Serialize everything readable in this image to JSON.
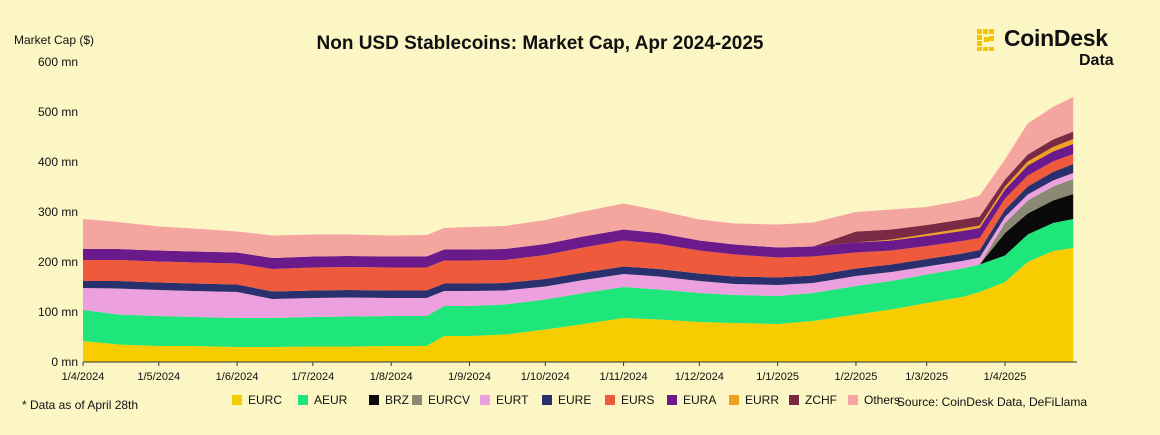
{
  "title": "Non USD Stablecoins: Market Cap, Apr 2024-2025",
  "brand": {
    "name": "CoinDesk",
    "sub": "Data",
    "mark_color": "#f5c400"
  },
  "footnote": "* Data as of April 28th",
  "source": "Source: CoinDesk Data, DeFiLlama",
  "chart_data": {
    "type": "area",
    "stacked": true,
    "ylabel": "Market Cap ($)",
    "ylim": [
      0,
      600
    ],
    "y_ticks": [
      0,
      100,
      200,
      300,
      400,
      500,
      600
    ],
    "y_tick_labels": [
      "0 mn",
      "100 mn",
      "200 mn",
      "300 mn",
      "400 mn",
      "500 mn",
      "600 mn"
    ],
    "x_ticks": [
      "2024-04-01",
      "2024-05-01",
      "2024-06-01",
      "2024-07-01",
      "2024-08-01",
      "2024-09-01",
      "2024-10-01",
      "2024-11-01",
      "2024-12-01",
      "2025-01-01",
      "2025-02-01",
      "2025-03-01",
      "2025-04-01"
    ],
    "x_tick_labels": [
      "1/4/2024",
      "1/5/2024",
      "1/6/2024",
      "1/7/2024",
      "1/8/2024",
      "1/9/2024",
      "1/10/2024",
      "1/11/2024",
      "1/12/2024",
      "1/1/2025",
      "1/2/2025",
      "1/3/2025",
      "1/4/2025"
    ],
    "x_range": [
      "2024-04-01",
      "2025-04-28"
    ],
    "x": [
      "2024-04-01",
      "2024-04-15",
      "2024-05-01",
      "2024-05-15",
      "2024-06-01",
      "2024-06-15",
      "2024-07-01",
      "2024-07-15",
      "2024-08-01",
      "2024-08-15",
      "2024-08-22",
      "2024-09-01",
      "2024-09-15",
      "2024-10-01",
      "2024-10-15",
      "2024-11-01",
      "2024-11-15",
      "2024-12-01",
      "2024-12-15",
      "2025-01-01",
      "2025-01-15",
      "2025-02-01",
      "2025-02-15",
      "2025-03-01",
      "2025-03-15",
      "2025-03-22",
      "2025-04-01",
      "2025-04-10",
      "2025-04-20",
      "2025-04-28"
    ],
    "series": [
      {
        "name": "EURC",
        "color": "#f7cc00",
        "values": [
          42,
          35,
          32,
          32,
          30,
          30,
          31,
          31,
          32,
          32,
          52,
          52,
          55,
          65,
          75,
          88,
          85,
          80,
          78,
          76,
          82,
          95,
          105,
          118,
          130,
          140,
          160,
          200,
          222,
          228
        ]
      },
      {
        "name": "AEUR",
        "color": "#1ee67a",
        "values": [
          62,
          60,
          60,
          58,
          58,
          58,
          59,
          60,
          60,
          60,
          60,
          60,
          60,
          60,
          62,
          62,
          60,
          58,
          56,
          56,
          56,
          57,
          57,
          57,
          57,
          55,
          53,
          55,
          56,
          58
        ]
      },
      {
        "name": "BRZ",
        "color": "#0a0a0a",
        "values": [
          0,
          0,
          0,
          0,
          0,
          0,
          0,
          0,
          0,
          0,
          0,
          0,
          0,
          0,
          0,
          0,
          0,
          0,
          0,
          0,
          0,
          0,
          0,
          0,
          0,
          0,
          45,
          42,
          45,
          50
        ]
      },
      {
        "name": "EURCV",
        "color": "#8a8a74",
        "values": [
          0,
          0,
          0,
          0,
          0,
          0,
          0,
          0,
          0,
          0,
          0,
          0,
          0,
          0,
          0,
          0,
          0,
          0,
          0,
          0,
          0,
          0,
          0,
          0,
          0,
          0,
          20,
          26,
          28,
          30
        ]
      },
      {
        "name": "EURT",
        "color": "#eca0e0",
        "values": [
          44,
          52,
          52,
          52,
          52,
          38,
          38,
          38,
          36,
          36,
          30,
          30,
          28,
          26,
          26,
          26,
          26,
          24,
          22,
          22,
          20,
          20,
          18,
          16,
          15,
          14,
          12,
          12,
          12,
          12
        ]
      },
      {
        "name": "EURE",
        "color": "#2a2f6e",
        "values": [
          14,
          15,
          15,
          15,
          15,
          15,
          15,
          15,
          15,
          15,
          15,
          15,
          15,
          15,
          15,
          15,
          15,
          15,
          15,
          15,
          15,
          15,
          15,
          15,
          15,
          15,
          15,
          16,
          17,
          18
        ]
      },
      {
        "name": "EURS",
        "color": "#f05a3c",
        "values": [
          42,
          42,
          42,
          42,
          42,
          45,
          46,
          46,
          46,
          46,
          46,
          46,
          46,
          48,
          50,
          52,
          50,
          46,
          44,
          40,
          38,
          32,
          28,
          26,
          25,
          24,
          22,
          22,
          21,
          20
        ]
      },
      {
        "name": "EURA",
        "color": "#6a1a8a",
        "values": [
          22,
          22,
          22,
          22,
          22,
          22,
          22,
          22,
          22,
          22,
          22,
          22,
          22,
          22,
          22,
          22,
          22,
          20,
          20,
          20,
          20,
          20,
          20,
          20,
          20,
          20,
          18,
          20,
          20,
          20
        ]
      },
      {
        "name": "EURR",
        "color": "#f0a020",
        "values": [
          0,
          0,
          0,
          0,
          0,
          0,
          0,
          0,
          0,
          0,
          0,
          0,
          0,
          0,
          0,
          0,
          0,
          0,
          0,
          0,
          0,
          0,
          2,
          4,
          5,
          5,
          6,
          8,
          9,
          10
        ]
      },
      {
        "name": "ZCHF",
        "color": "#7a2a44",
        "values": [
          0,
          0,
          0,
          0,
          0,
          0,
          0,
          0,
          0,
          0,
          0,
          0,
          0,
          0,
          0,
          0,
          0,
          0,
          0,
          0,
          0,
          22,
          20,
          18,
          18,
          18,
          14,
          14,
          15,
          15
        ]
      },
      {
        "name": "Others",
        "color": "#f5a5a0",
        "values": [
          60,
          54,
          48,
          46,
          42,
          45,
          44,
          43,
          42,
          43,
          43,
          45,
          46,
          48,
          50,
          52,
          45,
          42,
          42,
          46,
          48,
          39,
          40,
          36,
          38,
          42,
          40,
          62,
          65,
          69
        ]
      }
    ],
    "grid": false,
    "legend_position": "bottom"
  }
}
